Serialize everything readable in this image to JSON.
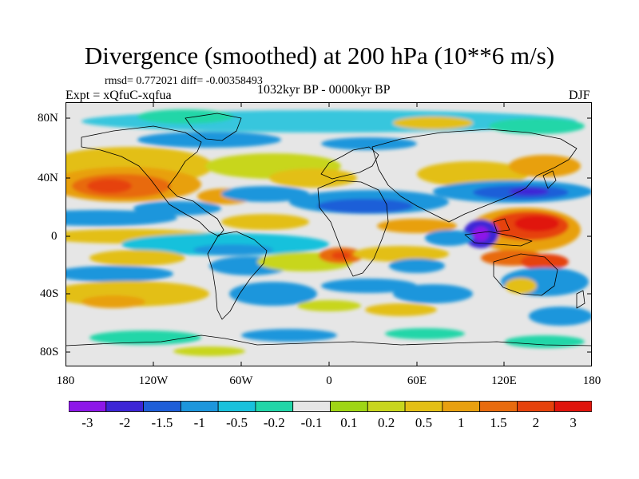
{
  "title": "Divergence (smoothed) at 200 hPa (10**6 m/s)",
  "stats": "rmsd= 0.772021 diff= -0.00358493",
  "experiment": "Expt = xQfuC-xqfua",
  "period": "1032kyr BP - 0000kyr BP",
  "season": "DJF",
  "lat_labels": [
    "80N",
    "40N",
    "0",
    "40S",
    "80S"
  ],
  "lon_labels": [
    "180",
    "120W",
    "60W",
    "0",
    "60E",
    "120E",
    "180"
  ],
  "colorbar": {
    "labels": [
      "-3",
      "-2",
      "-1.5",
      "-1",
      "-0.5",
      "-0.2",
      "-0.1",
      "0.1",
      "0.2",
      "0.5",
      "1",
      "1.5",
      "2",
      "3"
    ],
    "colors": [
      "#8d17e8",
      "#3c25d6",
      "#1e5ed8",
      "#1d96dc",
      "#19c1dc",
      "#22d6a8",
      "#e6e6e6",
      "#9fd615",
      "#c8d61e",
      "#e3bf16",
      "#e8a010",
      "#e86b0e",
      "#e6420c",
      "#e0140c"
    ]
  },
  "colors": {
    "background": "#e6e6e6",
    "coast": "#000000"
  }
}
